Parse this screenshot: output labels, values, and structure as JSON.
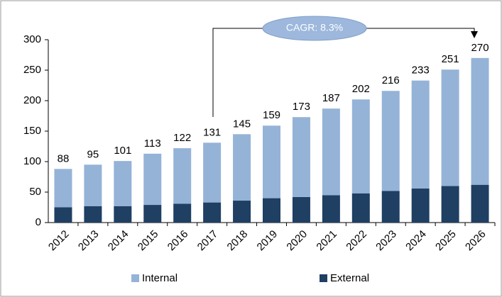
{
  "chart_data": {
    "type": "bar",
    "stacked": true,
    "categories": [
      "2012",
      "2013",
      "2014",
      "2015",
      "2016",
      "2017",
      "2018",
      "2019",
      "2020",
      "2021",
      "2022",
      "2023",
      "2024",
      "2025",
      "2026"
    ],
    "series": [
      {
        "name": "External",
        "color": "#1f3f63",
        "values": [
          25,
          27,
          27,
          29,
          31,
          33,
          36,
          40,
          42,
          45,
          48,
          52,
          56,
          60,
          62
        ]
      },
      {
        "name": "Internal",
        "color": "#95b3d7",
        "values": [
          63,
          68,
          74,
          84,
          91,
          98,
          109,
          119,
          131,
          142,
          154,
          164,
          177,
          191,
          208
        ]
      }
    ],
    "totals": [
      88,
      95,
      101,
      113,
      122,
      131,
      145,
      159,
      173,
      187,
      202,
      216,
      233,
      251,
      270
    ],
    "annotation": "CAGR: 8.3%",
    "ylim": [
      0,
      300
    ],
    "yticks": [
      0,
      50,
      100,
      150,
      200,
      250,
      300
    ],
    "grid": false
  }
}
